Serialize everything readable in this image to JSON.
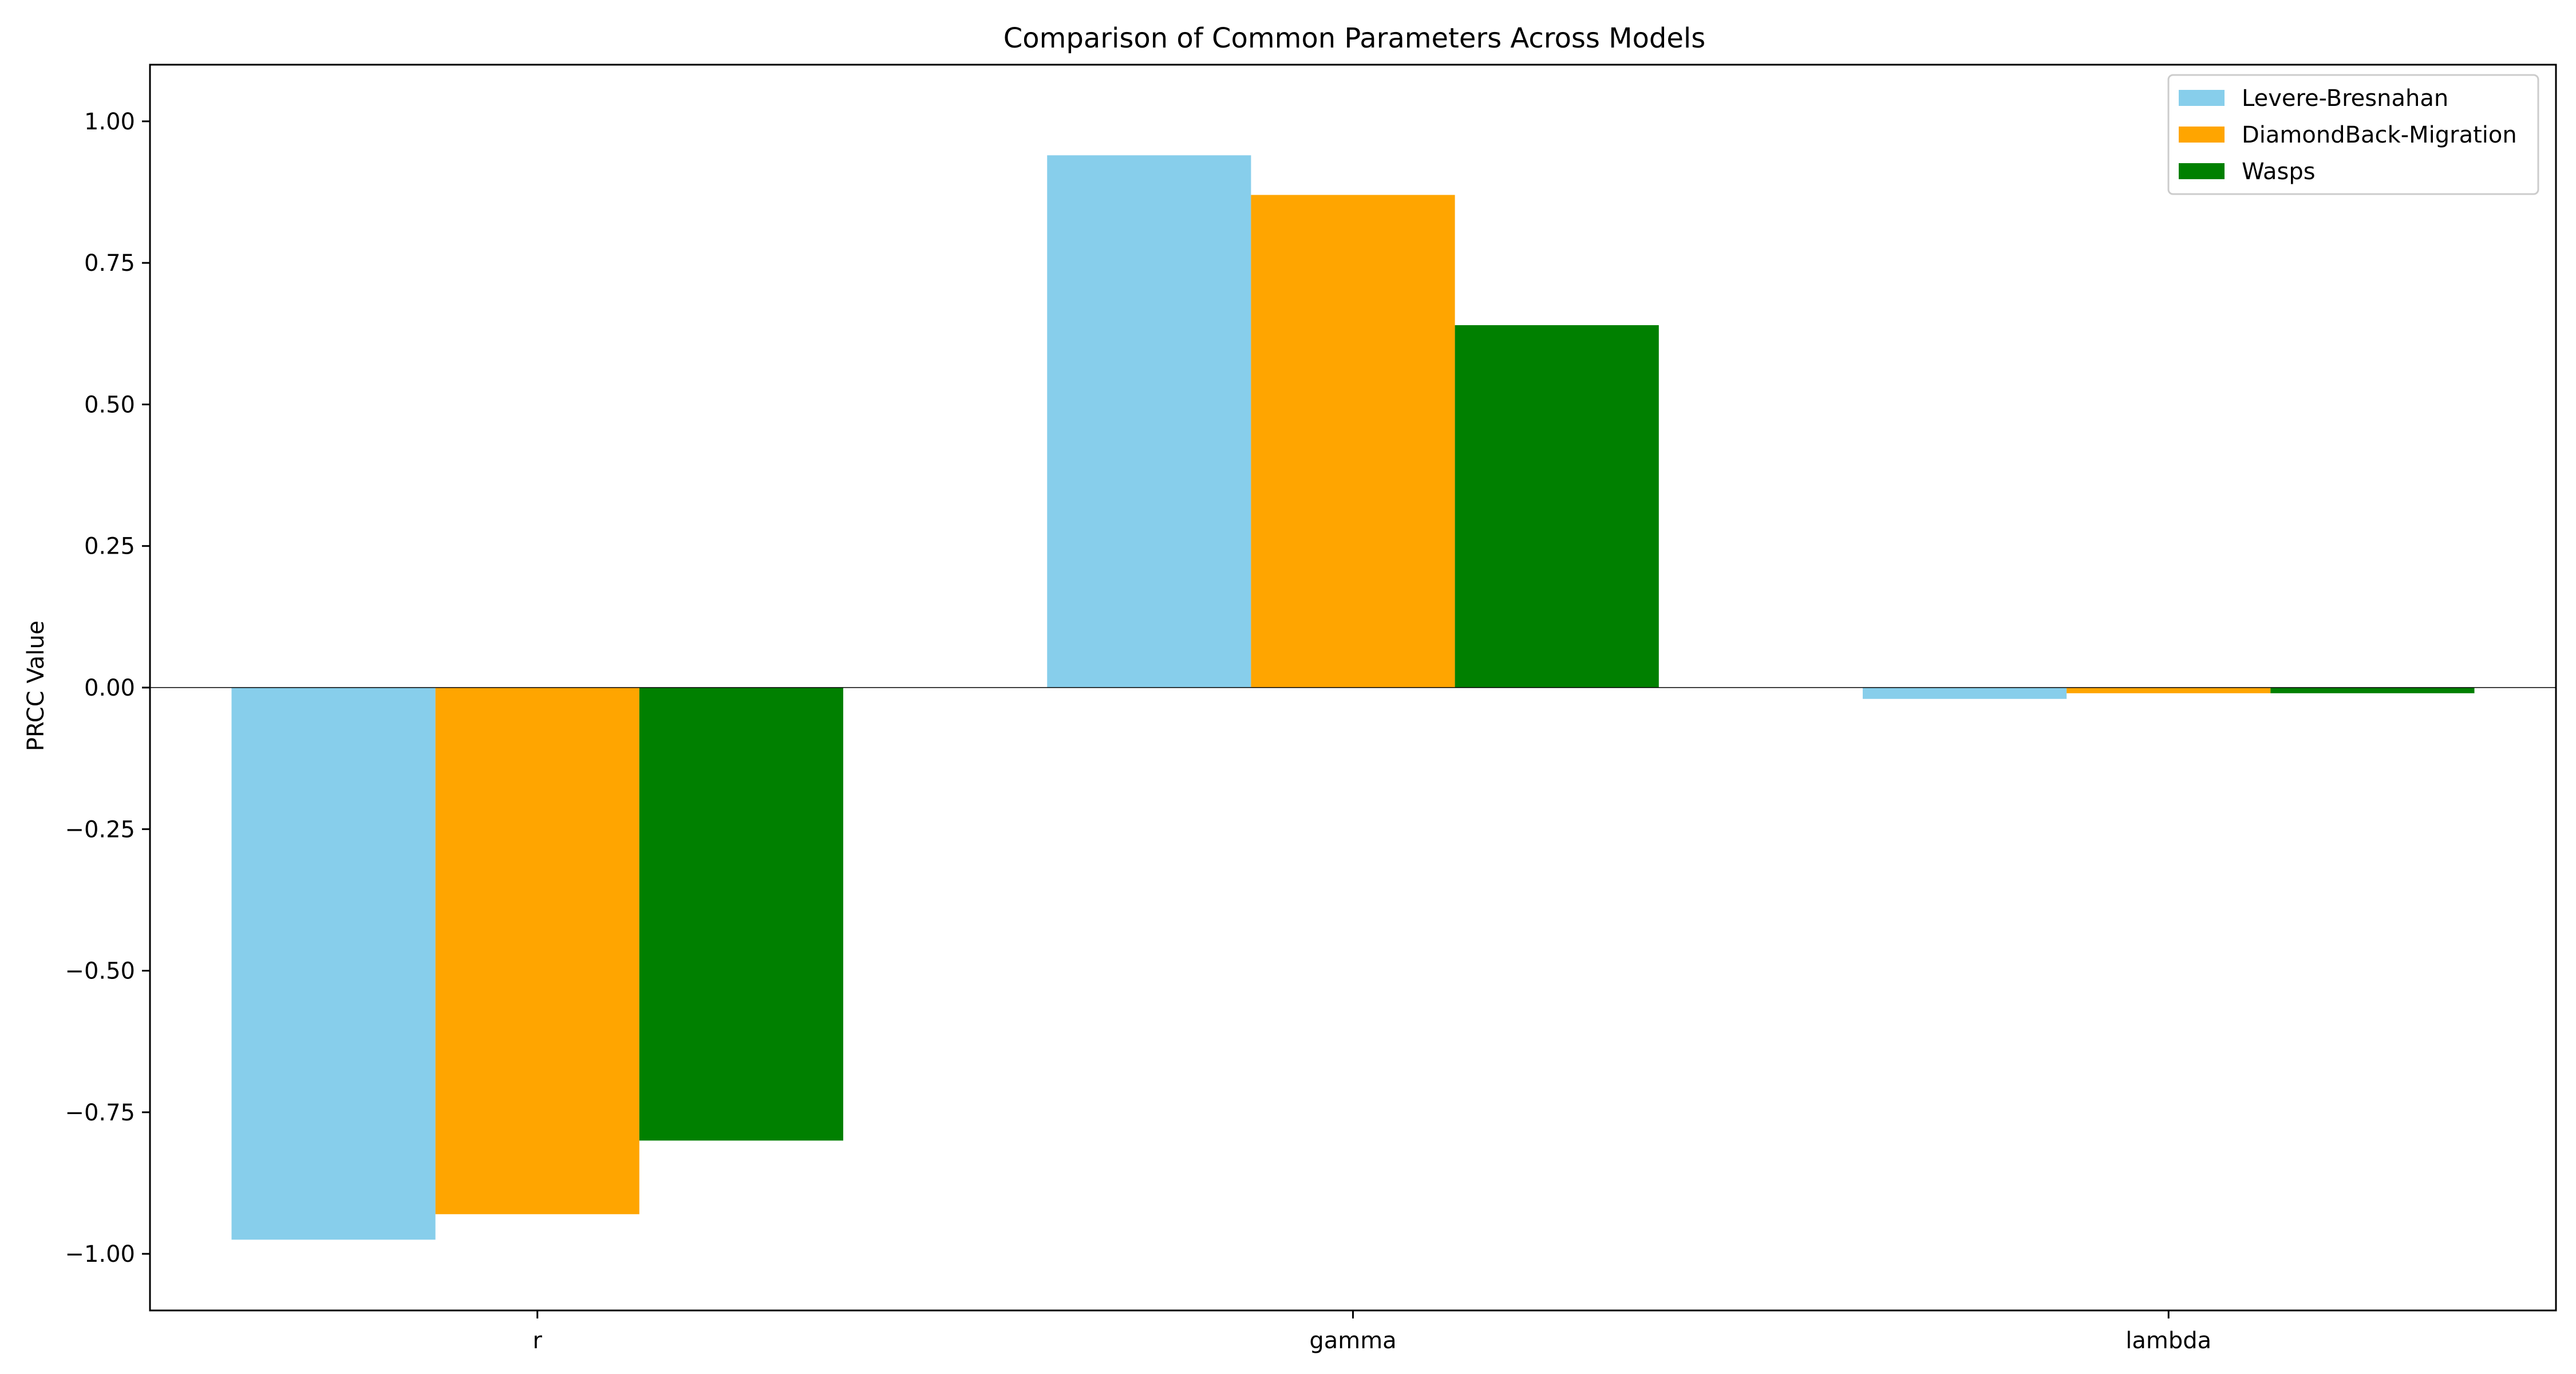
{
  "chart_data": {
    "type": "bar",
    "title": "Comparison of Common Parameters Across Models",
    "xlabel": "",
    "ylabel": "PRCC Value",
    "categories": [
      "r",
      "gamma",
      "lambda"
    ],
    "series": [
      {
        "name": "Levere-Bresnahan",
        "color": "#87CEEB",
        "values": [
          -0.975,
          0.94,
          -0.02
        ]
      },
      {
        "name": "DiamondBack-Migration",
        "color": "#FFA500",
        "values": [
          -0.93,
          0.87,
          -0.01
        ]
      },
      {
        "name": "Wasps",
        "color": "#008000",
        "values": [
          -0.8,
          0.64,
          -0.01
        ]
      }
    ],
    "ylim": [
      -1.1,
      1.1
    ],
    "yticks": [
      -1.0,
      -0.75,
      -0.5,
      -0.25,
      0.0,
      0.25,
      0.5,
      0.75,
      1.0
    ],
    "ytick_labels": [
      "−1.00",
      "−0.75",
      "−0.50",
      "−0.25",
      "0.00",
      "0.25",
      "0.50",
      "0.75",
      "1.00"
    ],
    "grid": false,
    "legend_position": "top-right",
    "zero_line": true
  }
}
